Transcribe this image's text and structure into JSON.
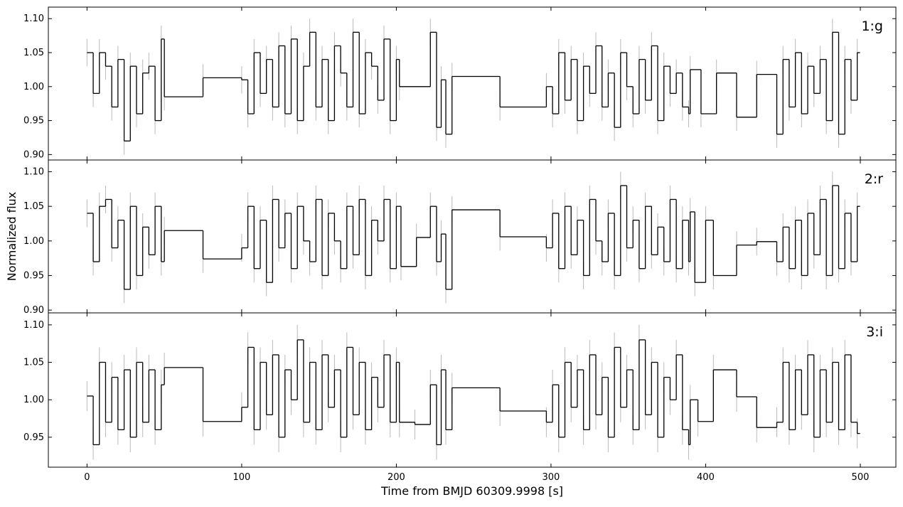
{
  "chart_data": [
    {
      "type": "step",
      "label": "1:g",
      "yerr": 0.02,
      "color": "#000000",
      "errcolor": "#bbbbbb",
      "xlim": [
        -25,
        523
      ],
      "ylim": [
        0.892,
        1.117
      ],
      "xticks": [
        0,
        100,
        200,
        300,
        400,
        500
      ],
      "yticks": [
        {
          "value": 0.9,
          "label": "0.90"
        },
        {
          "value": 0.95,
          "label": "0.95"
        },
        {
          "value": 1.0,
          "label": "1.00"
        },
        {
          "value": 1.05,
          "label": "1.05"
        },
        {
          "value": 1.1,
          "label": "1.10"
        }
      ],
      "x": [
        0,
        4,
        8,
        12,
        16,
        20,
        24,
        28,
        32,
        36,
        40,
        44,
        48,
        50,
        75,
        100,
        104,
        108,
        112,
        116,
        120,
        124,
        128,
        132,
        136,
        140,
        144,
        148,
        152,
        156,
        160,
        164,
        168,
        172,
        176,
        180,
        184,
        188,
        192,
        196,
        200,
        202,
        222,
        226,
        229,
        232,
        236,
        267,
        297,
        301,
        305,
        309,
        313,
        317,
        321,
        325,
        329,
        333,
        337,
        341,
        345,
        349,
        353,
        357,
        361,
        365,
        369,
        373,
        377,
        381,
        385,
        389,
        390,
        397,
        407,
        420,
        433,
        446,
        450,
        454,
        458,
        462,
        466,
        470,
        474,
        478,
        482,
        486,
        490,
        494,
        498
      ],
      "values": [
        1.05,
        0.99,
        1.05,
        1.03,
        0.97,
        1.04,
        0.92,
        1.03,
        0.96,
        1.02,
        1.03,
        0.95,
        1.07,
        0.985,
        1.013,
        1.01,
        0.96,
        1.05,
        0.99,
        1.04,
        0.97,
        1.06,
        0.96,
        1.07,
        0.95,
        1.03,
        1.08,
        0.97,
        1.04,
        0.95,
        1.06,
        1.02,
        0.97,
        1.08,
        0.96,
        1.05,
        1.03,
        0.98,
        1.07,
        0.95,
        1.04,
        1.0,
        1.08,
        0.94,
        1.01,
        0.93,
        1.015,
        0.97,
        1.0,
        0.96,
        1.05,
        0.98,
        1.04,
        0.95,
        1.03,
        0.99,
        1.06,
        0.97,
        1.02,
        0.94,
        1.05,
        1.0,
        0.96,
        1.04,
        0.98,
        1.06,
        0.95,
        1.03,
        0.99,
        1.02,
        0.97,
        0.96,
        1.025,
        0.96,
        1.02,
        0.955,
        1.018,
        0.93,
        1.04,
        0.97,
        1.05,
        0.96,
        1.03,
        0.99,
        1.04,
        0.95,
        1.08,
        0.93,
        1.04,
        0.98,
        1.05
      ]
    },
    {
      "type": "step",
      "label": "2:r",
      "yerr": 0.02,
      "color": "#000000",
      "errcolor": "#bbbbbb",
      "ylabel": "Normalized flux",
      "xlim": [
        -25,
        523
      ],
      "ylim": [
        0.896,
        1.117
      ],
      "xticks": [
        0,
        100,
        200,
        300,
        400,
        500
      ],
      "yticks": [
        {
          "value": 0.9,
          "label": "0.90"
        },
        {
          "value": 0.95,
          "label": "0.95"
        },
        {
          "value": 1.0,
          "label": "1.00"
        },
        {
          "value": 1.05,
          "label": "1.05"
        },
        {
          "value": 1.1,
          "label": "1.10"
        }
      ],
      "x": [
        0,
        4,
        8,
        12,
        16,
        20,
        24,
        28,
        32,
        36,
        40,
        44,
        48,
        50,
        75,
        100,
        104,
        108,
        112,
        116,
        120,
        124,
        128,
        132,
        136,
        140,
        144,
        148,
        152,
        156,
        160,
        164,
        168,
        172,
        176,
        180,
        184,
        188,
        192,
        196,
        200,
        203,
        213,
        222,
        226,
        229,
        232,
        236,
        267,
        297,
        301,
        305,
        309,
        313,
        317,
        321,
        325,
        329,
        333,
        337,
        341,
        345,
        349,
        353,
        357,
        361,
        365,
        369,
        373,
        377,
        381,
        385,
        389,
        390,
        393,
        400,
        405,
        420,
        433,
        446,
        450,
        454,
        458,
        462,
        466,
        470,
        474,
        478,
        482,
        486,
        490,
        494,
        498
      ],
      "values": [
        1.04,
        0.97,
        1.05,
        1.06,
        0.99,
        1.03,
        0.93,
        1.05,
        0.95,
        1.02,
        0.98,
        1.05,
        0.97,
        1.015,
        0.974,
        0.99,
        1.05,
        0.96,
        1.03,
        0.94,
        1.06,
        0.99,
        1.04,
        0.96,
        1.05,
        1.0,
        0.97,
        1.06,
        0.95,
        1.04,
        1.0,
        0.96,
        1.05,
        0.98,
        1.06,
        0.95,
        1.03,
        1.0,
        1.06,
        0.96,
        1.05,
        0.963,
        1.005,
        1.05,
        0.97,
        1.01,
        0.93,
        1.045,
        1.006,
        0.99,
        1.04,
        0.96,
        1.05,
        0.98,
        1.03,
        0.95,
        1.06,
        1.0,
        0.97,
        1.04,
        0.95,
        1.08,
        0.99,
        1.03,
        0.96,
        1.05,
        0.98,
        1.02,
        0.97,
        1.06,
        0.96,
        1.03,
        0.97,
        1.042,
        0.94,
        1.03,
        0.95,
        0.994,
        0.999,
        0.97,
        1.02,
        0.96,
        1.03,
        0.95,
        1.04,
        0.98,
        1.06,
        0.95,
        1.08,
        0.96,
        1.04,
        0.97,
        1.05
      ]
    },
    {
      "type": "step",
      "label": "3:i",
      "yerr": 0.02,
      "color": "#000000",
      "errcolor": "#bbbbbb",
      "xlabel": "Time from BMJD 60309.9998 [s]",
      "xlim": [
        -25,
        523
      ],
      "ylim": [
        0.91,
        1.116
      ],
      "xticks": [
        0,
        100,
        200,
        300,
        400,
        500
      ],
      "yticks": [
        {
          "value": 0.95,
          "label": "0.95"
        },
        {
          "value": 1.0,
          "label": "1.00"
        },
        {
          "value": 1.05,
          "label": "1.05"
        },
        {
          "value": 1.1,
          "label": "1.10"
        }
      ],
      "x": [
        0,
        4,
        8,
        12,
        16,
        20,
        24,
        28,
        32,
        36,
        40,
        44,
        48,
        50,
        75,
        100,
        104,
        108,
        112,
        116,
        120,
        124,
        128,
        132,
        136,
        140,
        144,
        148,
        152,
        156,
        160,
        164,
        168,
        172,
        176,
        180,
        184,
        188,
        192,
        196,
        200,
        202,
        212,
        222,
        226,
        229,
        232,
        236,
        267,
        297,
        301,
        305,
        309,
        313,
        317,
        321,
        325,
        329,
        333,
        337,
        341,
        345,
        349,
        353,
        357,
        361,
        365,
        369,
        373,
        377,
        381,
        385,
        389,
        390,
        395,
        405,
        420,
        433,
        446,
        450,
        454,
        458,
        462,
        466,
        470,
        474,
        478,
        482,
        486,
        490,
        494,
        498
      ],
      "values": [
        1.005,
        0.94,
        1.05,
        0.97,
        1.03,
        0.96,
        1.04,
        0.95,
        1.05,
        0.97,
        1.04,
        0.96,
        1.02,
        1.043,
        0.971,
        0.99,
        1.07,
        0.96,
        1.05,
        0.98,
        1.06,
        0.95,
        1.04,
        1.0,
        1.08,
        0.97,
        1.05,
        0.96,
        1.06,
        0.99,
        1.04,
        0.95,
        1.07,
        0.98,
        1.05,
        0.96,
        1.03,
        0.99,
        1.06,
        0.97,
        1.05,
        0.97,
        0.967,
        1.02,
        0.94,
        1.04,
        0.96,
        1.016,
        0.985,
        0.97,
        1.02,
        0.95,
        1.05,
        0.99,
        1.04,
        0.96,
        1.06,
        0.98,
        1.03,
        0.95,
        1.07,
        0.99,
        1.04,
        0.96,
        1.08,
        0.98,
        1.05,
        0.95,
        1.03,
        1.0,
        1.06,
        0.96,
        0.94,
        1.0,
        0.971,
        1.04,
        1.004,
        0.963,
        0.97,
        1.05,
        0.96,
        1.04,
        0.98,
        1.06,
        0.95,
        1.04,
        0.97,
        1.05,
        0.96,
        1.06,
        0.97,
        0.955
      ]
    }
  ]
}
